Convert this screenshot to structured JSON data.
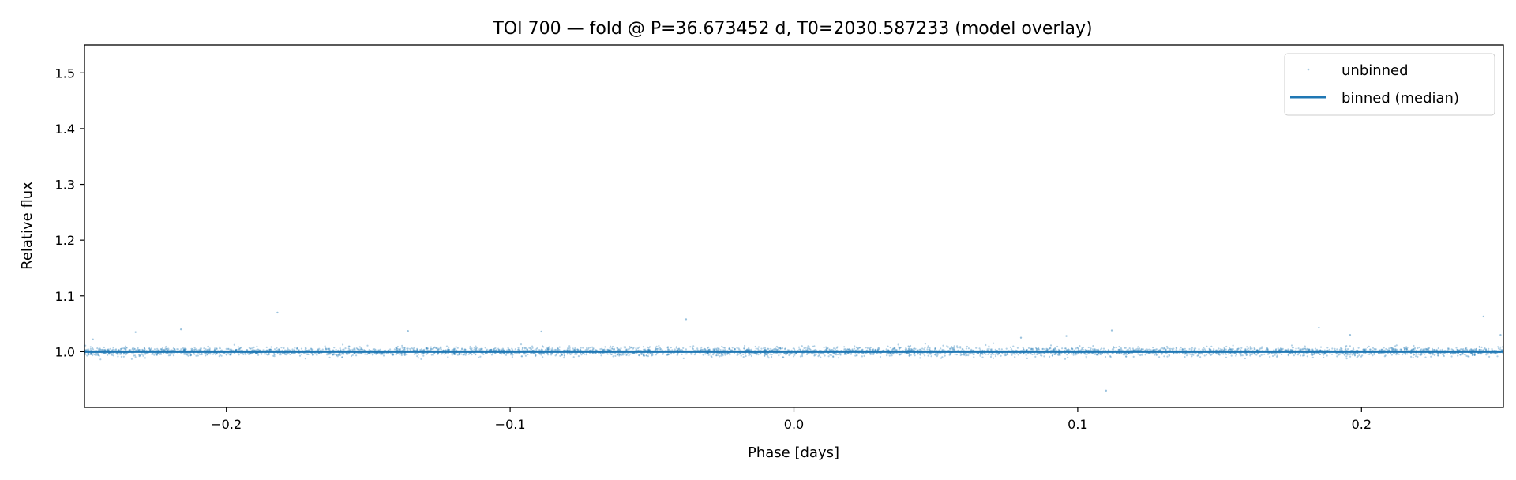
{
  "chart_data": {
    "type": "scatter",
    "title": "TOI 700 — fold @ P=36.673452 d, T0=2030.587233 (model overlay)",
    "xlabel": "Phase [days]",
    "ylabel": "Relative flux",
    "xlim": [
      -0.25,
      0.25
    ],
    "ylim": [
      0.9,
      1.55
    ],
    "x_ticks": [
      -0.2,
      -0.1,
      0.0,
      0.1,
      0.2
    ],
    "x_tick_labels": [
      "−0.2",
      "−0.1",
      "0.0",
      "0.1",
      "0.2"
    ],
    "y_ticks": [
      1.0,
      1.1,
      1.2,
      1.3,
      1.4,
      1.5
    ],
    "y_tick_labels": [
      "1.0",
      "1.1",
      "1.2",
      "1.3",
      "1.4",
      "1.5"
    ],
    "grid": false,
    "legend_position": "top-right",
    "colors": {
      "series": "#1f77b4"
    },
    "series": [
      {
        "name": "unbinned",
        "kind": "scatter",
        "baseline": 1.0,
        "scatter_sigma": 0.004,
        "outliers": [
          {
            "x": -0.247,
            "y": 1.022
          },
          {
            "x": -0.232,
            "y": 1.035
          },
          {
            "x": -0.216,
            "y": 1.04
          },
          {
            "x": -0.182,
            "y": 1.07
          },
          {
            "x": -0.136,
            "y": 1.037
          },
          {
            "x": -0.089,
            "y": 1.036
          },
          {
            "x": -0.038,
            "y": 1.058
          },
          {
            "x": 0.08,
            "y": 1.025
          },
          {
            "x": 0.096,
            "y": 1.028
          },
          {
            "x": 0.11,
            "y": 0.93
          },
          {
            "x": 0.112,
            "y": 1.038
          },
          {
            "x": 0.185,
            "y": 1.043
          },
          {
            "x": 0.196,
            "y": 1.03
          },
          {
            "x": 0.243,
            "y": 1.063
          },
          {
            "x": 0.249,
            "y": 1.03
          }
        ]
      },
      {
        "name": "binned (median)",
        "kind": "line",
        "x": [
          -0.25,
          -0.2,
          -0.15,
          -0.1,
          -0.05,
          0.0,
          0.05,
          0.1,
          0.15,
          0.2,
          0.25
        ],
        "y": [
          1.0,
          1.0,
          1.0,
          1.0,
          1.0,
          1.0,
          1.0,
          1.0,
          1.0,
          1.0,
          1.0
        ]
      }
    ]
  }
}
